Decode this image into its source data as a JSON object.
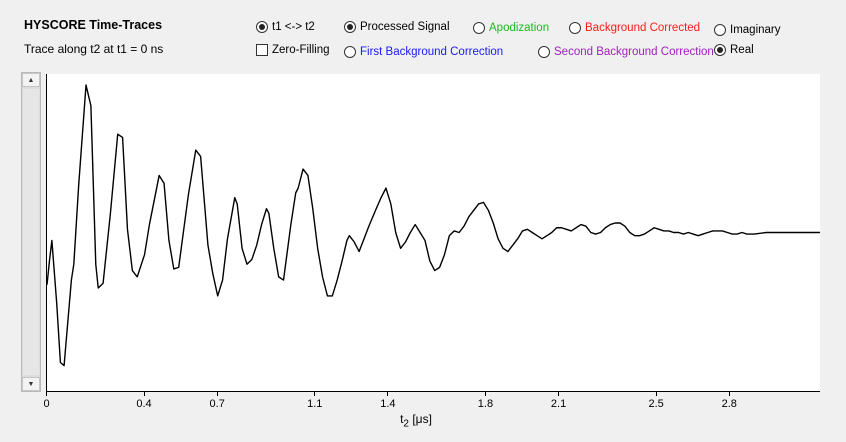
{
  "header": {
    "title": "HYSCORE Time-Traces",
    "subtitle": "Trace along t2 at t1 = 0 ns"
  },
  "options": {
    "swap_axes": {
      "label": "t1 <-> t2",
      "selected": true
    },
    "zero_filling": {
      "label": "Zero-Filling",
      "checked": false
    },
    "processed_signal": {
      "label": "Processed Signal",
      "selected": true,
      "color": "#000000"
    },
    "first_background_correction": {
      "label": "First Background Correction",
      "selected": false,
      "color": "#1a1aff"
    },
    "apodization": {
      "label": "Apodization",
      "selected": false,
      "color": "#1fb81f"
    },
    "background_corrected": {
      "label": "Background Corrected",
      "selected": false,
      "color": "#ff1a1a"
    },
    "second_background_correction": {
      "label": "Second Background Correction",
      "selected": false,
      "color": "#a020c0"
    },
    "imaginary": {
      "label": "Imaginary",
      "selected": false
    },
    "real": {
      "label": "Real",
      "selected": true
    }
  },
  "chart_data": {
    "type": "line",
    "xlabel": "t",
    "xlabel_sub": "2",
    "xlabel_unit": " [μs]",
    "xlim": [
      0,
      3.17
    ],
    "ylim": [
      -1,
      1
    ],
    "x_ticks": [
      {
        "value": 0,
        "label": "0"
      },
      {
        "value": 0.4,
        "label": "0.4"
      },
      {
        "value": 0.7,
        "label": "0.7"
      },
      {
        "value": 1.1,
        "label": "1.1"
      },
      {
        "value": 1.4,
        "label": "1.4"
      },
      {
        "value": 1.8,
        "label": "1.8"
      },
      {
        "value": 2.1,
        "label": "2.1"
      },
      {
        "value": 2.5,
        "label": "2.5"
      },
      {
        "value": 2.8,
        "label": "2.8"
      }
    ],
    "series": [
      {
        "color": "#000000",
        "points": [
          [
            0.0,
            -0.33
          ],
          [
            0.01,
            -0.18
          ],
          [
            0.02,
            -0.05
          ],
          [
            0.04,
            -0.45
          ],
          [
            0.055,
            -0.82
          ],
          [
            0.07,
            -0.84
          ],
          [
            0.1,
            -0.3
          ],
          [
            0.11,
            -0.2
          ],
          [
            0.13,
            0.3
          ],
          [
            0.16,
            0.93
          ],
          [
            0.18,
            0.8
          ],
          [
            0.2,
            -0.2
          ],
          [
            0.21,
            -0.35
          ],
          [
            0.23,
            -0.32
          ],
          [
            0.26,
            0.12
          ],
          [
            0.29,
            0.62
          ],
          [
            0.31,
            0.6
          ],
          [
            0.33,
            0.02
          ],
          [
            0.35,
            -0.24
          ],
          [
            0.37,
            -0.28
          ],
          [
            0.4,
            -0.14
          ],
          [
            0.42,
            0.05
          ],
          [
            0.46,
            0.36
          ],
          [
            0.48,
            0.31
          ],
          [
            0.5,
            -0.05
          ],
          [
            0.52,
            -0.23
          ],
          [
            0.54,
            -0.22
          ],
          [
            0.58,
            0.24
          ],
          [
            0.61,
            0.52
          ],
          [
            0.63,
            0.48
          ],
          [
            0.66,
            -0.08
          ],
          [
            0.68,
            -0.26
          ],
          [
            0.7,
            -0.4
          ],
          [
            0.72,
            -0.3
          ],
          [
            0.74,
            -0.04
          ],
          [
            0.77,
            0.22
          ],
          [
            0.78,
            0.18
          ],
          [
            0.8,
            -0.1
          ],
          [
            0.82,
            -0.2
          ],
          [
            0.84,
            -0.17
          ],
          [
            0.86,
            -0.08
          ],
          [
            0.88,
            0.05
          ],
          [
            0.9,
            0.15
          ],
          [
            0.91,
            0.12
          ],
          [
            0.93,
            -0.1
          ],
          [
            0.95,
            -0.28
          ],
          [
            0.97,
            -0.3
          ],
          [
            1.0,
            0.05
          ],
          [
            1.02,
            0.25
          ],
          [
            1.03,
            0.28
          ],
          [
            1.05,
            0.4
          ],
          [
            1.07,
            0.36
          ],
          [
            1.09,
            0.15
          ],
          [
            1.11,
            -0.1
          ],
          [
            1.13,
            -0.28
          ],
          [
            1.15,
            -0.4
          ],
          [
            1.17,
            -0.4
          ],
          [
            1.19,
            -0.3
          ],
          [
            1.21,
            -0.18
          ],
          [
            1.23,
            -0.05
          ],
          [
            1.24,
            -0.02
          ],
          [
            1.26,
            -0.06
          ],
          [
            1.28,
            -0.12
          ],
          [
            1.3,
            -0.04
          ],
          [
            1.32,
            0.04
          ],
          [
            1.35,
            0.15
          ],
          [
            1.37,
            0.22
          ],
          [
            1.39,
            0.28
          ],
          [
            1.41,
            0.18
          ],
          [
            1.43,
            0.0
          ],
          [
            1.45,
            -0.1
          ],
          [
            1.47,
            -0.06
          ],
          [
            1.49,
            0.0
          ],
          [
            1.51,
            0.05
          ],
          [
            1.53,
            0.0
          ],
          [
            1.55,
            -0.05
          ],
          [
            1.57,
            -0.18
          ],
          [
            1.59,
            -0.24
          ],
          [
            1.61,
            -0.22
          ],
          [
            1.63,
            -0.14
          ],
          [
            1.65,
            -0.02
          ],
          [
            1.67,
            0.01
          ],
          [
            1.69,
            0.0
          ],
          [
            1.71,
            0.04
          ],
          [
            1.73,
            0.1
          ],
          [
            1.75,
            0.14
          ],
          [
            1.77,
            0.18
          ],
          [
            1.79,
            0.19
          ],
          [
            1.81,
            0.14
          ],
          [
            1.83,
            0.06
          ],
          [
            1.85,
            -0.04
          ],
          [
            1.87,
            -0.1
          ],
          [
            1.89,
            -0.12
          ],
          [
            1.91,
            -0.08
          ],
          [
            1.93,
            -0.04
          ],
          [
            1.95,
            0.01
          ],
          [
            1.97,
            0.02
          ],
          [
            1.99,
            0.0
          ],
          [
            2.01,
            -0.02
          ],
          [
            2.03,
            -0.04
          ],
          [
            2.05,
            -0.02
          ],
          [
            2.07,
            0.0
          ],
          [
            2.09,
            0.03
          ],
          [
            2.11,
            0.03
          ],
          [
            2.13,
            0.02
          ],
          [
            2.15,
            0.01
          ],
          [
            2.17,
            0.03
          ],
          [
            2.19,
            0.05
          ],
          [
            2.21,
            0.04
          ],
          [
            2.23,
            0.0
          ],
          [
            2.25,
            -0.01
          ],
          [
            2.27,
            0.0
          ],
          [
            2.29,
            0.03
          ],
          [
            2.31,
            0.05
          ],
          [
            2.33,
            0.06
          ],
          [
            2.35,
            0.06
          ],
          [
            2.37,
            0.04
          ],
          [
            2.39,
            0.0
          ],
          [
            2.41,
            -0.02
          ],
          [
            2.43,
            -0.02
          ],
          [
            2.45,
            -0.01
          ],
          [
            2.47,
            0.01
          ],
          [
            2.49,
            0.03
          ],
          [
            2.51,
            0.02
          ],
          [
            2.53,
            0.01
          ],
          [
            2.55,
            0.01
          ],
          [
            2.57,
            0.0
          ],
          [
            2.59,
            0.0
          ],
          [
            2.61,
            -0.01
          ],
          [
            2.63,
            0.0
          ],
          [
            2.65,
            -0.01
          ],
          [
            2.67,
            -0.02
          ],
          [
            2.69,
            -0.01
          ],
          [
            2.71,
            0.0
          ],
          [
            2.73,
            0.01
          ],
          [
            2.75,
            0.01
          ],
          [
            2.77,
            0.01
          ],
          [
            2.79,
            0.0
          ],
          [
            2.81,
            -0.01
          ],
          [
            2.83,
            -0.01
          ],
          [
            2.85,
            0.0
          ],
          [
            2.87,
            -0.01
          ],
          [
            2.9,
            -0.01
          ],
          [
            2.95,
            0.0
          ],
          [
            3.0,
            0.0
          ],
          [
            3.05,
            0.0
          ],
          [
            3.1,
            0.0
          ],
          [
            3.17,
            0.0
          ]
        ]
      }
    ]
  }
}
